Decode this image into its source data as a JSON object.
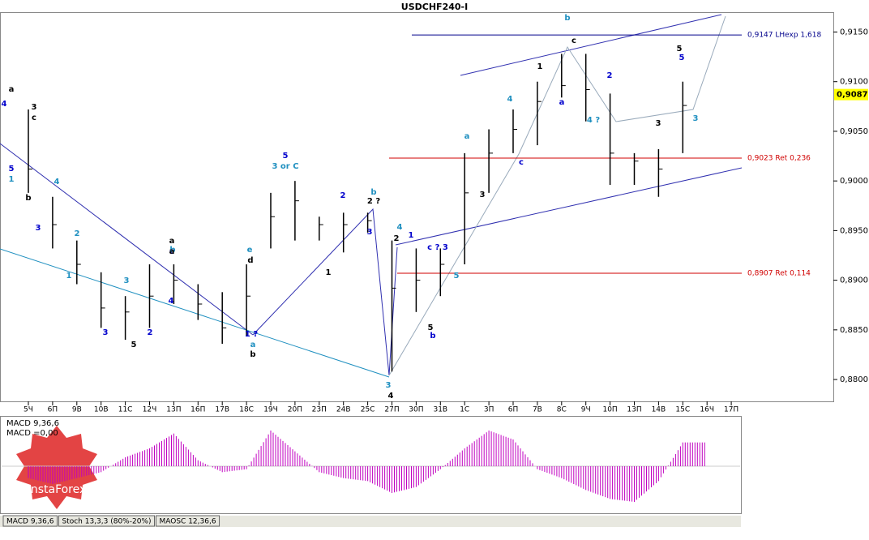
{
  "chart_data": {
    "type": "ohlc-bars",
    "title": "USDCHF240-I",
    "categories": [
      "5Ч",
      "6П",
      "9В",
      "10В",
      "11С",
      "12Ч",
      "13П",
      "16П",
      "17В",
      "18С",
      "19Ч",
      "20П",
      "23П",
      "24В",
      "25С",
      "27П",
      "30П",
      "31В",
      "1С",
      "3П",
      "6П",
      "7В",
      "8С",
      "9Ч",
      "10П",
      "13П",
      "14В",
      "15С",
      "16Ч",
      "17П"
    ],
    "series": [
      {
        "name": "high",
        "color": "#000000",
        "values": [
          0.9072,
          0.8984,
          0.894,
          0.8908,
          0.8884,
          0.8916,
          0.8916,
          0.8896,
          0.8888,
          0.8916,
          0.8988,
          0.9,
          0.8964,
          0.8968,
          0.8968,
          0.894,
          0.8932,
          0.8932,
          0.9028,
          0.9052,
          0.9072,
          0.91,
          0.9128,
          0.9128,
          0.9088,
          0.9028,
          0.9032,
          0.91,
          null,
          null
        ]
      },
      {
        "name": "low",
        "color": "#000000",
        "values": [
          0.8988,
          0.8932,
          0.8896,
          0.8852,
          0.884,
          0.8852,
          0.8876,
          0.886,
          0.8836,
          0.8844,
          0.8932,
          0.894,
          0.894,
          0.8928,
          0.8948,
          0.8808,
          0.8868,
          0.8884,
          0.8916,
          0.8988,
          0.9028,
          0.9036,
          0.9084,
          0.906,
          0.8996,
          0.8996,
          0.8984,
          0.9028,
          null,
          null
        ]
      },
      {
        "name": "close",
        "color": "#000000",
        "values": [
          0.9012,
          0.8956,
          0.8916,
          0.8872,
          0.8868,
          0.8884,
          0.89,
          0.8876,
          0.8852,
          0.8884,
          0.8964,
          0.898,
          0.8956,
          0.8956,
          0.896,
          0.8892,
          0.89,
          0.8916,
          0.8988,
          0.9028,
          0.9052,
          0.908,
          0.9096,
          0.9092,
          0.9028,
          0.902,
          0.9012,
          0.9076,
          null,
          null
        ]
      }
    ],
    "ylim": [
      0.8778,
      0.917
    ],
    "yticks": [
      {
        "value": 0.915,
        "label": "0,9150"
      },
      {
        "value": 0.91,
        "label": "0,9100"
      },
      {
        "value": 0.905,
        "label": "0,9050"
      },
      {
        "value": 0.9,
        "label": "0,9000"
      },
      {
        "value": 0.895,
        "label": "0,8950"
      },
      {
        "value": 0.89,
        "label": "0,8900"
      },
      {
        "value": 0.885,
        "label": "0,8850"
      },
      {
        "value": 0.88,
        "label": "0,8800"
      }
    ],
    "last_price": {
      "value": 0.9087,
      "label": "0,9087"
    },
    "levels": [
      {
        "value": 0.9147,
        "label": "0,9147 LHexp 1,618",
        "color": "#00008b"
      },
      {
        "value": 0.9023,
        "label": "0,9023 Ret 0,236",
        "color": "#d00000"
      },
      {
        "value": 0.8907,
        "label": "0,8907 Ret 0,114",
        "color": "#d00000"
      }
    ],
    "wave_labels": [
      "a",
      "4",
      "2",
      "c",
      "5",
      "1",
      "b",
      "3",
      "4",
      "3",
      "2",
      "1",
      "5",
      "3",
      "3",
      "a",
      "c",
      "b",
      "a",
      "4",
      "e",
      "d",
      "1 ?",
      "a",
      "b",
      "5",
      "3 or C",
      "1",
      "2",
      "b",
      "2 ?",
      "3",
      "4",
      "2",
      "1",
      "3",
      "4",
      "c ? 3",
      "5",
      "5",
      "b",
      "a",
      "3",
      "c",
      "4",
      "1",
      "a",
      "b",
      "c",
      "2",
      "4 ?",
      "5",
      "5",
      "3",
      "3"
    ],
    "indicator": {
      "title": "MACD 9,36,6",
      "value_text": "MACD =0,00",
      "color": "#c000c0",
      "ylim": [
        -0.003,
        0.003
      ],
      "values": [
        -0.0008,
        -0.0012,
        -0.0008,
        -0.0004,
        0.0006,
        0.0012,
        0.0022,
        0.0004,
        -0.0004,
        -0.0002,
        0.0024,
        0.001,
        -0.0004,
        -0.0008,
        -0.001,
        -0.0018,
        -0.0014,
        -0.0002,
        0.0012,
        0.0024,
        0.0018,
        -0.0002,
        -0.0008,
        -0.0016,
        -0.0022,
        -0.0024,
        -0.001,
        0.0016,
        null,
        null
      ]
    },
    "tabs": [
      "MACD 9,36,6",
      "Stoch 13,3,3 (80%-20%)",
      "MAOSC 12,36,6"
    ],
    "logo": "InstaForex"
  }
}
